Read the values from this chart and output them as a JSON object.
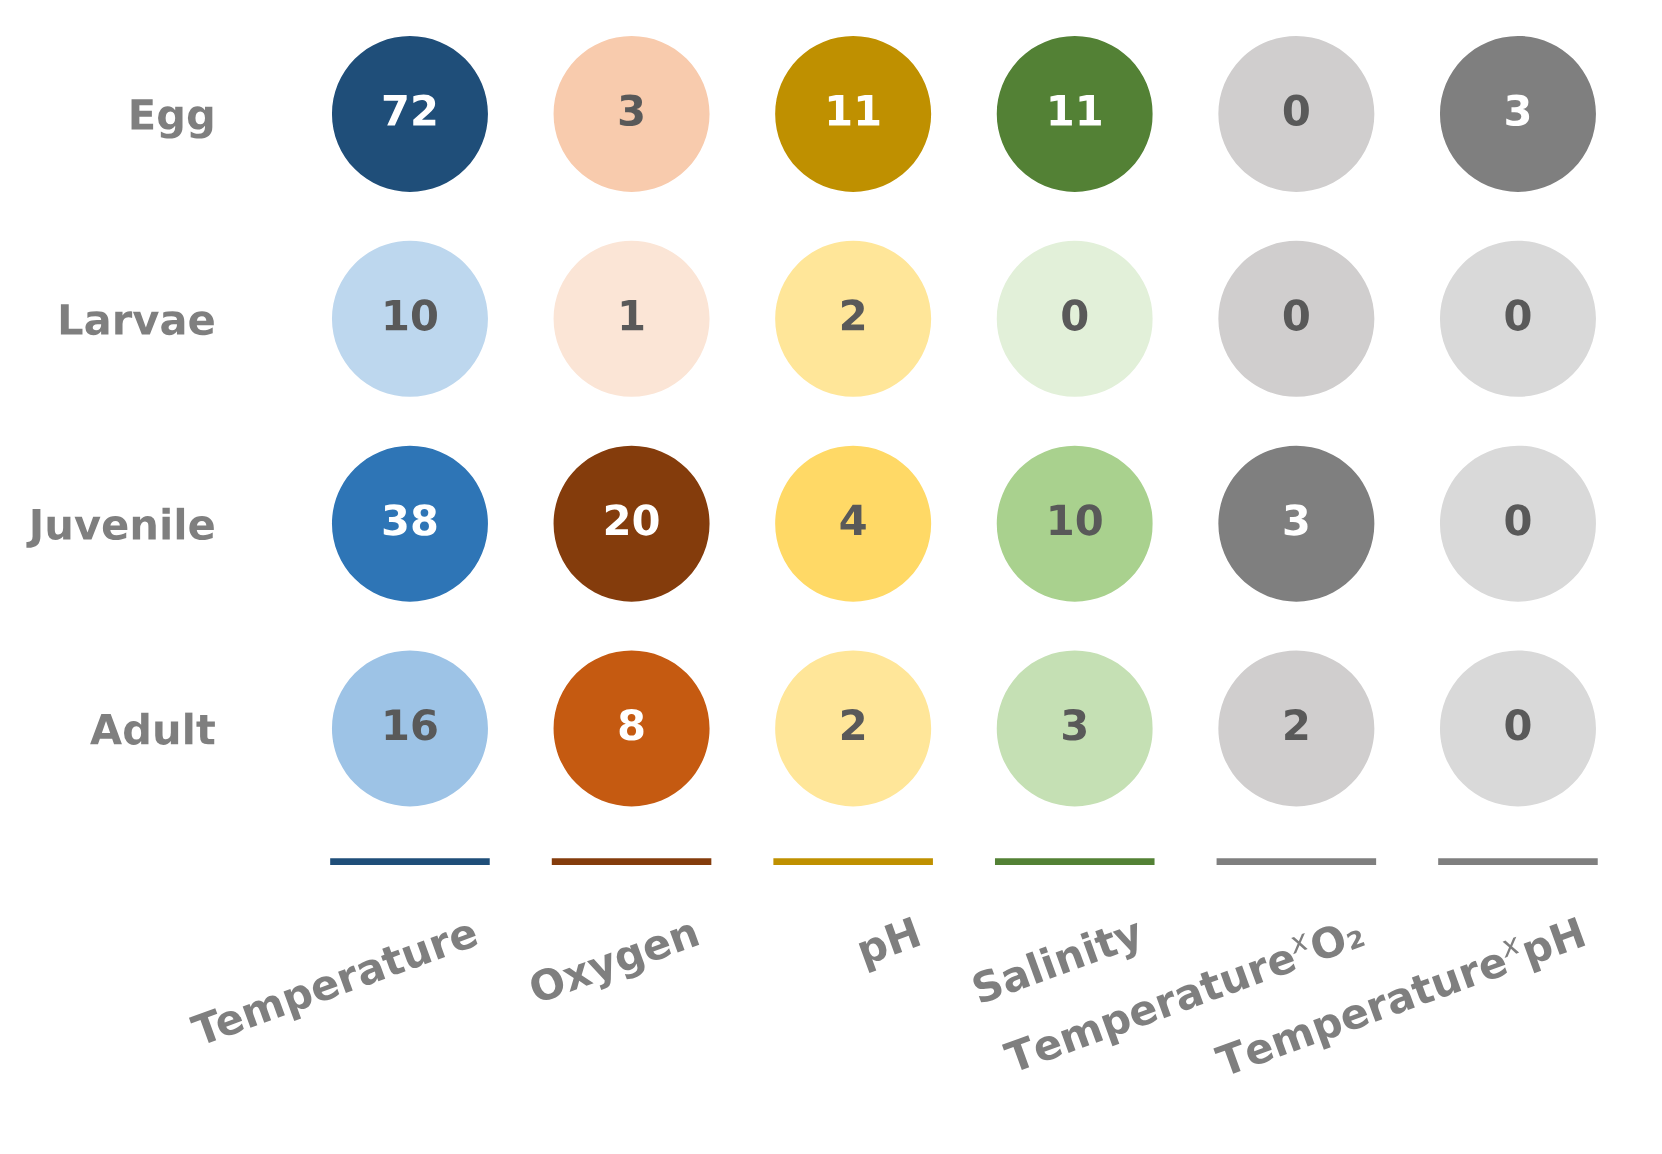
{
  "chart_data": {
    "type": "heatmap",
    "categories": [
      "Temperature",
      "Oxygen",
      "pH",
      "Salinity",
      "Temperature$^{x}$O₂",
      "Temperature$^{x}$pH"
    ],
    "y_categories": [
      "Egg",
      "Larvae",
      "Juvenile",
      "Adult"
    ],
    "cells": [
      [
        72,
        3,
        11,
        11,
        0,
        3
      ],
      [
        10,
        1,
        2,
        0,
        0,
        0
      ],
      [
        38,
        20,
        4,
        10,
        3,
        0
      ],
      [
        16,
        8,
        2,
        3,
        2,
        0
      ]
    ],
    "colors": [
      "#1f4e79",
      "#f8cbad",
      "#bf9000",
      "#538135",
      "#d0cece",
      "#7f7f7f",
      "#bdd7ee",
      "#fbe5d6",
      "#ffe699",
      "#e2f0d9",
      "#d0cece",
      "#d9d9d9",
      "#2e75b6",
      "#843c0c",
      "#ffd966",
      "#a9d18e",
      "#7f7f7f",
      "#d9d9d9",
      "#9dc3e6",
      "#c55a11",
      "#ffe699",
      "#c5e0b4",
      "#d0cece",
      "#d9d9d9"
    ],
    "data_labels": true
  }
}
